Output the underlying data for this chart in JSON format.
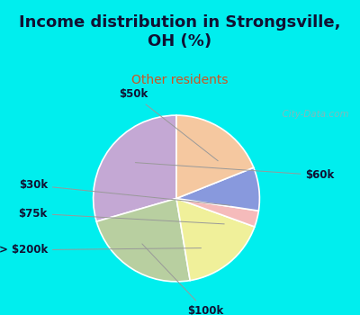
{
  "title": "Income distribution in Strongsville,\nOH (%)",
  "subtitle": "Other residents",
  "slices": [
    {
      "label": "$60k",
      "value": 28,
      "color": "#C4A8D4"
    },
    {
      "label": "$100k",
      "value": 22,
      "color": "#B8CFA0"
    },
    {
      "label": "> $200k",
      "value": 16,
      "color": "#F0F09A"
    },
    {
      "label": "$75k",
      "value": 3,
      "color": "#F5BBBB"
    },
    {
      "label": "$30k",
      "value": 8,
      "color": "#8899DD"
    },
    {
      "label": "$50k",
      "value": 18,
      "color": "#F5C8A0"
    }
  ],
  "bg_top": "#00EEEE",
  "bg_chart_color": "#D8EEE0",
  "title_color": "#111133",
  "subtitle_color": "#CC5522",
  "watermark": "  City-Data.com",
  "label_color": "#111133",
  "label_fontsize": 8.5,
  "title_fontsize": 13,
  "subtitle_fontsize": 10,
  "startangle": 90
}
